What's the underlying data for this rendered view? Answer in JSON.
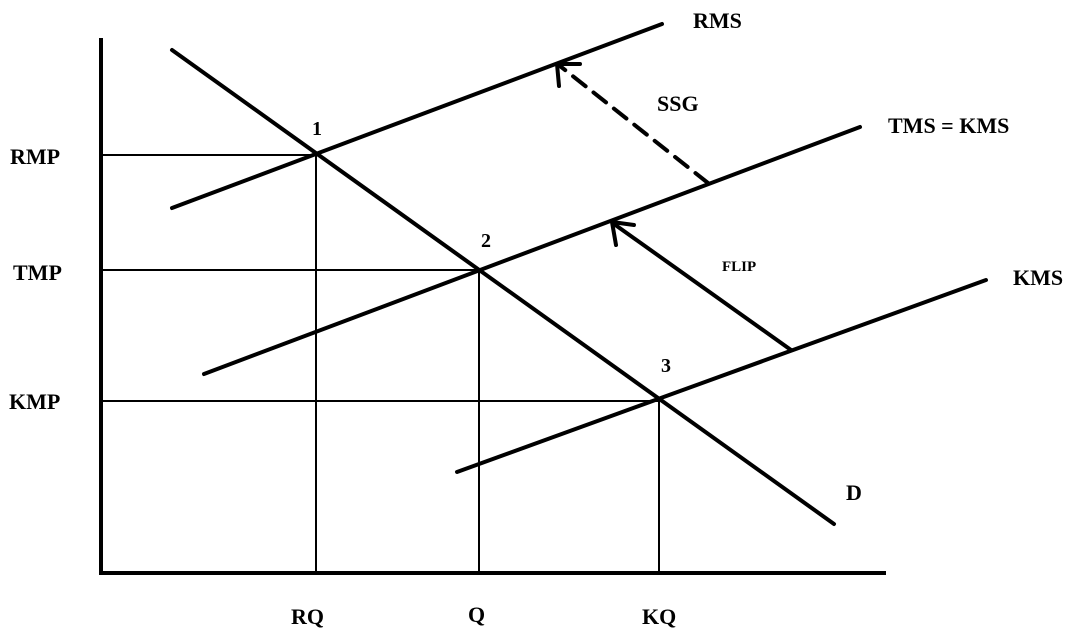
{
  "labels": {
    "rms": "RMS",
    "ssg": "SSG",
    "tms_kms": "TMS = KMS",
    "flip": "FLIP",
    "kms": "KMS",
    "demand": "D",
    "rmp": "RMP",
    "tmp": "TMP",
    "kmp": "KMP",
    "rq": "RQ",
    "q": "Q",
    "kq": "KQ",
    "point1": "1",
    "point2": "2",
    "point3": "3"
  }
}
